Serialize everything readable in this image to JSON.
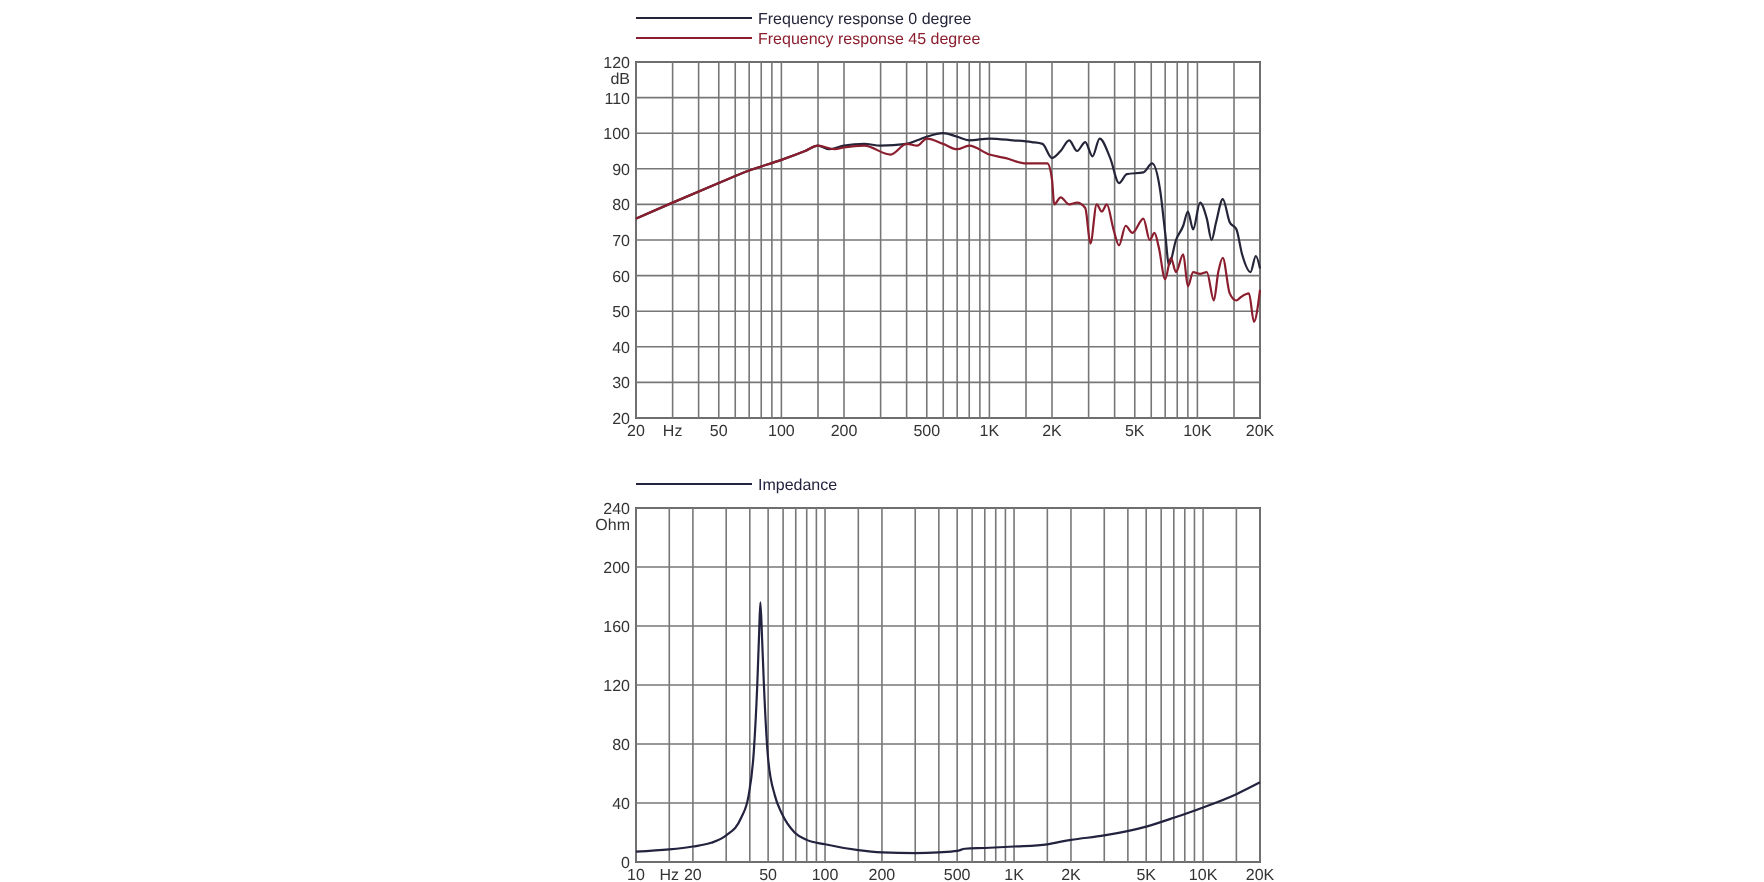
{
  "chart_data": [
    {
      "type": "line",
      "xlabel": null,
      "ylabel": "dB",
      "log": "x",
      "grid": true,
      "legend": "top left",
      "line_style": "solid",
      "xlim": [
        20,
        20000
      ],
      "ylim": [
        20,
        120
      ],
      "xticks": [
        20,
        {
          "value": 30,
          "label": "Hz"
        },
        {
          "value": 40,
          "label": null
        },
        50,
        {
          "value": 60,
          "label": null
        },
        {
          "value": 70,
          "label": null
        },
        {
          "value": 80,
          "label": null
        },
        {
          "value": 90,
          "label": null
        },
        100,
        {
          "value": 150,
          "label": null
        },
        200,
        {
          "value": 300,
          "label": null
        },
        {
          "value": 400,
          "label": null
        },
        500,
        {
          "value": 600,
          "label": null
        },
        {
          "value": 700,
          "label": null
        },
        {
          "value": 800,
          "label": null
        },
        {
          "value": 900,
          "label": null
        },
        {
          "value": 1000,
          "label": "1K"
        },
        {
          "value": 1500,
          "label": null
        },
        {
          "value": 2000,
          "label": "2K"
        },
        {
          "value": 3000,
          "label": null
        },
        {
          "value": 4000,
          "label": null
        },
        {
          "value": 5000,
          "label": "5K"
        },
        {
          "value": 6000,
          "label": null
        },
        {
          "value": 7000,
          "label": null
        },
        {
          "value": 8000,
          "label": null
        },
        {
          "value": 9000,
          "label": null
        },
        {
          "value": 10000,
          "label": "10K"
        },
        {
          "value": 15000,
          "label": null
        },
        {
          "value": 20000,
          "label": "20K"
        }
      ],
      "yticks": [
        20,
        30,
        40,
        50,
        60,
        70,
        80,
        90,
        100,
        110,
        120
      ],
      "series": [
        {
          "name": "Frequency response 0 degree",
          "color": "#25253a",
          "x": [
            20,
            30,
            50,
            70,
            100,
            130,
            150,
            170,
            200,
            250,
            300,
            400,
            450,
            500,
            600,
            700,
            800,
            1000,
            1300,
            1600,
            1800,
            2000,
            2200,
            2420,
            2640,
            2890,
            3130,
            3390,
            3810,
            4200,
            4580,
            5500,
            6060,
            6620,
            7000,
            7300,
            7890,
            8550,
            9000,
            9540,
            10300,
            11100,
            11700,
            12300,
            13250,
            14300,
            15400,
            16400,
            18000,
            19100,
            20000
          ],
          "values": [
            76,
            80.5,
            86,
            89.5,
            92.5,
            95,
            96.5,
            95.5,
            96.5,
            97,
            96.5,
            97,
            98,
            99,
            100,
            99,
            98,
            98.5,
            98,
            97.5,
            97,
            93,
            95,
            98,
            95,
            97.5,
            93.5,
            98.5,
            93,
            86,
            88.5,
            89,
            91.5,
            84,
            72,
            63,
            70,
            74,
            78,
            73,
            80.5,
            76,
            70,
            75,
            81.5,
            75,
            73,
            66,
            61,
            65.5,
            62
          ]
        },
        {
          "name": "Frequency response 45 degree",
          "color": "#8b1e2e",
          "x": [
            20,
            30,
            50,
            70,
            100,
            130,
            150,
            180,
            200,
            250,
            335,
            400,
            450,
            500,
            600,
            700,
            800,
            1000,
            1200,
            1500,
            1900,
            2000,
            2050,
            2200,
            2420,
            2640,
            2890,
            3060,
            3280,
            3470,
            3670,
            3950,
            4200,
            4520,
            4870,
            5500,
            5900,
            6220,
            6520,
            7000,
            7460,
            7890,
            8550,
            9000,
            9540,
            10300,
            11100,
            12000,
            12600,
            13250,
            14300,
            15400,
            16200,
            17700,
            18700,
            20000
          ],
          "values": [
            76,
            80.5,
            86,
            89.5,
            92.5,
            95,
            96.5,
            95.5,
            96,
            96.5,
            94,
            97,
            96.5,
            98.5,
            97,
            95.5,
            96.5,
            94,
            93,
            91.5,
            91.5,
            87,
            80,
            82,
            80,
            80.5,
            79,
            69,
            80,
            78,
            80,
            73,
            68.5,
            74,
            72,
            76,
            70,
            72,
            68,
            59,
            65,
            61,
            66,
            57,
            61,
            60.5,
            61,
            53,
            61,
            65,
            55,
            53,
            54,
            55,
            47,
            56
          ]
        }
      ]
    },
    {
      "type": "line",
      "ylabel": "Ohm",
      "log": "x",
      "grid": true,
      "legend": "top left",
      "line_style": "solid",
      "xlim": [
        10,
        20000
      ],
      "ylim": [
        0,
        240
      ],
      "xticks": [
        10,
        {
          "value": 15,
          "label": "Hz"
        },
        20,
        {
          "value": 30,
          "label": null
        },
        {
          "value": 40,
          "label": null
        },
        50,
        {
          "value": 60,
          "label": null
        },
        {
          "value": 70,
          "label": null
        },
        {
          "value": 80,
          "label": null
        },
        {
          "value": 90,
          "label": null
        },
        100,
        {
          "value": 150,
          "label": null
        },
        200,
        {
          "value": 300,
          "label": null
        },
        {
          "value": 400,
          "label": null
        },
        500,
        {
          "value": 600,
          "label": null
        },
        {
          "value": 700,
          "label": null
        },
        {
          "value": 800,
          "label": null
        },
        {
          "value": 900,
          "label": null
        },
        {
          "value": 1000,
          "label": "1K"
        },
        {
          "value": 1500,
          "label": null
        },
        {
          "value": 2000,
          "label": "2K"
        },
        {
          "value": 3000,
          "label": null
        },
        {
          "value": 4000,
          "label": null
        },
        {
          "value": 5000,
          "label": "5K"
        },
        {
          "value": 6000,
          "label": null
        },
        {
          "value": 7000,
          "label": null
        },
        {
          "value": 8000,
          "label": null
        },
        {
          "value": 9000,
          "label": null
        },
        {
          "value": 10000,
          "label": "10K"
        },
        {
          "value": 15000,
          "label": null
        },
        {
          "value": 20000,
          "label": "20K"
        }
      ],
      "yticks": [
        0,
        40,
        80,
        120,
        160,
        200,
        240
      ],
      "series": [
        {
          "name": "Impedance",
          "color": "#23233f",
          "x": [
            10,
            15,
            20,
            25,
            30,
            36,
            39.4,
            42,
            43.8,
            44.8,
            45.5,
            46.5,
            47.5,
            50,
            54.3,
            59,
            69,
            80,
            100,
            150,
            200,
            300,
            400,
            500,
            550,
            700,
            1000,
            1500,
            1800,
            2000,
            3000,
            5000,
            7000,
            10000,
            15000,
            20000
          ],
          "values": [
            7,
            8.5,
            10.5,
            13,
            18,
            30,
            45,
            75,
            120,
            155,
            176,
            150,
            120,
            70,
            45,
            33,
            20,
            15,
            12,
            8,
            6.5,
            6,
            6.5,
            7.5,
            9,
            9.5,
            10.5,
            12,
            14,
            15,
            18,
            24,
            30,
            37,
            46,
            54
          ]
        }
      ]
    }
  ]
}
